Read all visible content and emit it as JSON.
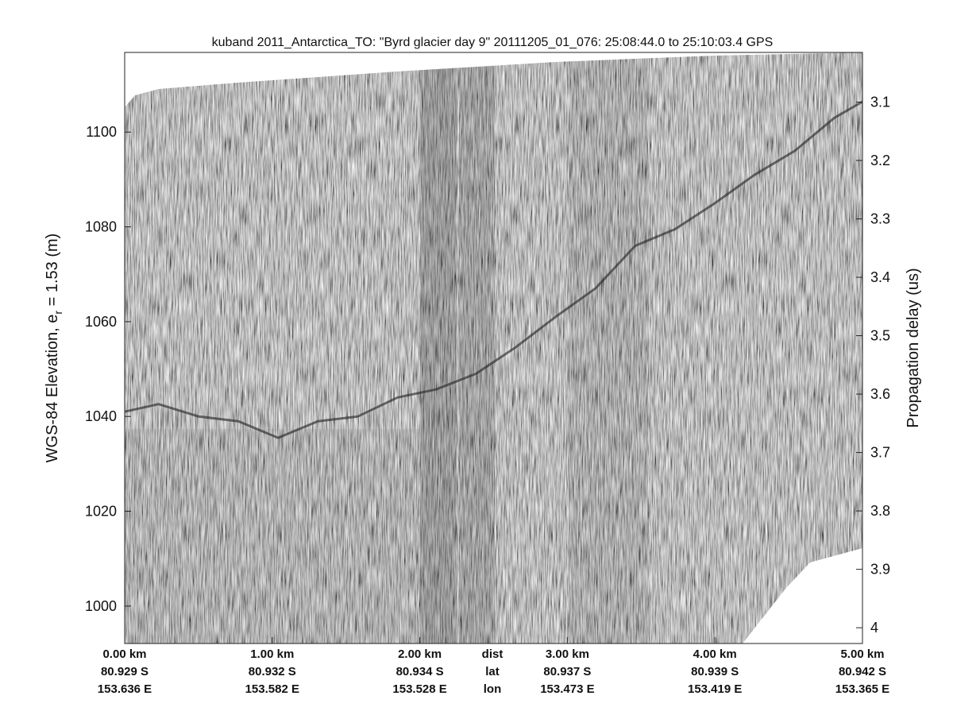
{
  "chart_data": {
    "type": "echogram",
    "title": "kuband 2011_Antarctica_TO: \"Byrd glacier day 9\"  20111205_01_076: 25:08:44.0 to 25:10:03.4 GPS",
    "ylabel": {
      "text": "WGS-84 Elevation, e",
      "subscript": "r",
      "suffix": " = 1.53 (m)"
    },
    "y2label": "Propagation delay (us)",
    "xlim": [
      0,
      5
    ],
    "ylim": [
      992.1,
      1116.8
    ],
    "yticks": [
      1000,
      1020,
      1040,
      1060,
      1080,
      1100
    ],
    "y2lim": [
      4.027,
      3.015
    ],
    "y2ticks": [
      3.1,
      3.2,
      3.3,
      3.4,
      3.5,
      3.6,
      3.7,
      3.8,
      3.9,
      4
    ],
    "row_labels": [
      "dist",
      "lat",
      "lon"
    ],
    "xticks": [
      {
        "value": 0,
        "label": "0.00 km",
        "lat": "80.929 S",
        "lon": "153.636 E"
      },
      {
        "value": 1,
        "label": "1.00 km",
        "lat": "80.932 S",
        "lon": "153.582 E"
      },
      {
        "value": 2,
        "label": "2.00 km",
        "lat": "80.934 S",
        "lon": "153.528 E"
      },
      {
        "value": 3,
        "label": "3.00 km",
        "lat": "80.937 S",
        "lon": "153.473 E"
      },
      {
        "value": 4,
        "label": "4.00 km",
        "lat": "80.939 S",
        "lon": "153.419 E"
      },
      {
        "value": 5,
        "label": "5.00 km",
        "lat": "80.942 S",
        "lon": "153.365 E"
      }
    ],
    "surface": {
      "color": "#2a2a2a",
      "x": [
        0,
        0.23,
        0.5,
        0.77,
        1.04,
        1.31,
        1.58,
        1.85,
        2.11,
        2.38,
        2.65,
        2.92,
        3.19,
        3.46,
        3.73,
        4.0,
        4.27,
        4.54,
        4.81,
        5
      ],
      "values": [
        1041,
        1042.6,
        1040,
        1039,
        1035.5,
        1039,
        1040,
        1044,
        1045.7,
        1049,
        1054.6,
        1061,
        1067,
        1076,
        1079.5,
        1085,
        1091,
        1096,
        1103,
        1106.4
      ]
    }
  }
}
